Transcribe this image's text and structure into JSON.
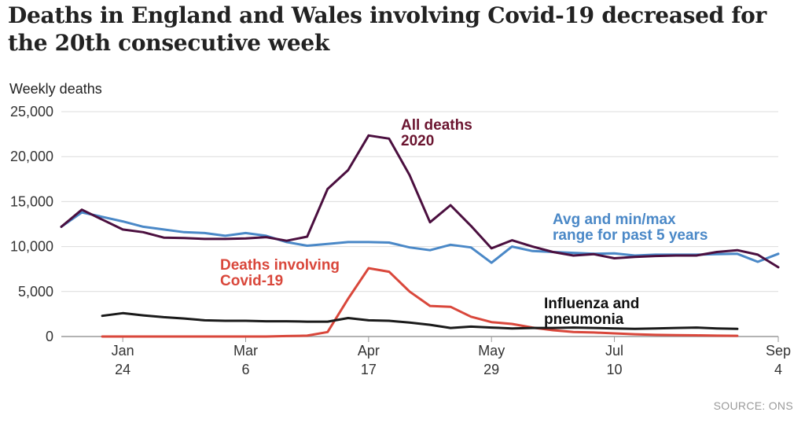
{
  "chart_data": {
    "type": "line",
    "title": "Deaths in England and Wales involving Covid-19 decreased for the 20th consecutive week",
    "ylabel": "Weekly deaths",
    "xlabel": "",
    "ylim": [
      0,
      25000
    ],
    "yticks": [
      0,
      5000,
      10000,
      15000,
      20000,
      25000
    ],
    "ytick_labels": [
      "0",
      "5,000",
      "10,000",
      "15,000",
      "20,000",
      "25,000"
    ],
    "grid": true,
    "xtick_labels": [
      {
        "week": 3,
        "month": "Jan",
        "day": "24"
      },
      {
        "week": 9,
        "month": "Mar",
        "day": "6"
      },
      {
        "week": 15,
        "month": "Apr",
        "day": "17"
      },
      {
        "week": 21,
        "month": "May",
        "day": "29"
      },
      {
        "week": 27,
        "month": "Jul",
        "day": "10"
      },
      {
        "week": 35,
        "month": "Sep",
        "day": "4"
      }
    ],
    "x_range": [
      0,
      35
    ],
    "series": [
      {
        "name": "Avg and min/max range for past 5 years",
        "color": "#4a88c7",
        "x": [
          0,
          1,
          2,
          3,
          4,
          5,
          6,
          7,
          8,
          9,
          10,
          11,
          12,
          13,
          14,
          15,
          16,
          17,
          18,
          19,
          20,
          21,
          22,
          23,
          24,
          25,
          26,
          27,
          28,
          29,
          30,
          31,
          32,
          33,
          34,
          35
        ],
        "values": [
          12200,
          13800,
          13300,
          12800,
          12200,
          11900,
          11600,
          11500,
          11200,
          11500,
          11200,
          10500,
          10100,
          10300,
          10500,
          10500,
          10450,
          9900,
          9600,
          10200,
          9900,
          8200,
          10000,
          9500,
          9400,
          9300,
          9200,
          9250,
          9000,
          9100,
          9100,
          9100,
          9150,
          9200,
          8300,
          9200
        ]
      },
      {
        "name": "All deaths 2020",
        "color": "#4b0f3f",
        "x": [
          0,
          1,
          2,
          3,
          4,
          5,
          6,
          7,
          8,
          9,
          10,
          11,
          12,
          13,
          14,
          15,
          16,
          17,
          18,
          19,
          20,
          21,
          22,
          23,
          24,
          25,
          26,
          27,
          28,
          29,
          30,
          31,
          32,
          33,
          34,
          35
        ],
        "values": [
          12200,
          14100,
          13000,
          11900,
          11600,
          11000,
          10950,
          10850,
          10850,
          10900,
          11050,
          10650,
          11100,
          16400,
          18500,
          22350,
          22000,
          17950,
          12700,
          14600,
          12300,
          9800,
          10700,
          10000,
          9400,
          9000,
          9150,
          8700,
          8850,
          8950,
          9000,
          9000,
          9400,
          9600,
          9100,
          7700
        ]
      },
      {
        "name": "Deaths involving Covid-19",
        "color": "#d9473b",
        "x": [
          2,
          3,
          4,
          5,
          6,
          7,
          8,
          9,
          10,
          11,
          12,
          13,
          14,
          15,
          16,
          17,
          18,
          19,
          20,
          21,
          22,
          23,
          24,
          25,
          26,
          27,
          28,
          29,
          30,
          31,
          32,
          33
        ],
        "values": [
          0,
          0,
          0,
          0,
          0,
          0,
          0,
          0,
          0,
          50,
          100,
          500,
          4200,
          7600,
          7200,
          5000,
          3400,
          3300,
          2200,
          1600,
          1400,
          1000,
          700,
          500,
          450,
          350,
          250,
          180,
          150,
          130,
          100,
          80
        ]
      },
      {
        "name": "Influenza and pneumonia",
        "color": "#1a1a1a",
        "x": [
          2,
          3,
          4,
          5,
          6,
          7,
          8,
          9,
          10,
          11,
          12,
          13,
          14,
          15,
          16,
          17,
          18,
          19,
          20,
          21,
          22,
          23,
          24,
          25,
          26,
          27,
          28,
          29,
          30,
          31,
          32,
          33
        ],
        "values": [
          2300,
          2600,
          2350,
          2150,
          2000,
          1800,
          1750,
          1750,
          1700,
          1700,
          1650,
          1650,
          2050,
          1800,
          1750,
          1550,
          1300,
          950,
          1100,
          1000,
          900,
          950,
          950,
          1000,
          950,
          900,
          850,
          900,
          950,
          1000,
          900,
          850
        ]
      }
    ],
    "annotations": [
      {
        "text_lines": [
          "All deaths",
          "2020"
        ],
        "color": "#6b1530"
      },
      {
        "text_lines": [
          "Avg and min/max",
          "range for past 5 years"
        ],
        "color": "#4a88c7"
      },
      {
        "text_lines": [
          "Deaths involving",
          "Covid-19"
        ],
        "color": "#d9473b"
      },
      {
        "text_lines": [
          "Influenza and",
          "pneumonia"
        ],
        "color": "#111111"
      }
    ]
  },
  "header": {
    "title": "Deaths in England and Wales involving Covid-19 decreased for the 20th consecutive week",
    "y_axis_label": "Weekly deaths"
  },
  "footer": {
    "source": "SOURCE: ONS"
  }
}
